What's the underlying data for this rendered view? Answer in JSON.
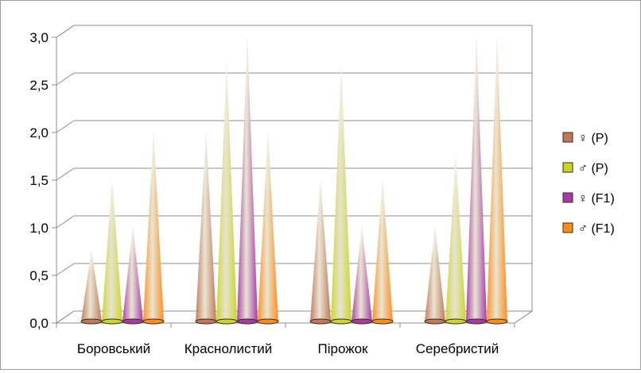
{
  "chart_data": {
    "type": "bar",
    "bar_shape": "cone",
    "categories": [
      "Боровський",
      "Краснолистий",
      "Пірожок",
      "Серебристий"
    ],
    "series": [
      {
        "name": "♀ (P)",
        "color": "#c0785a",
        "values": [
          0.75,
          2.0,
          1.5,
          1.0
        ]
      },
      {
        "name": "♂ (P)",
        "color": "#c8d628",
        "values": [
          1.5,
          2.75,
          2.7,
          1.75
        ]
      },
      {
        "name": "♀ (F1)",
        "color": "#a83aa8",
        "values": [
          1.0,
          3.0,
          1.0,
          3.0
        ]
      },
      {
        "name": "♂ (F1)",
        "color": "#ff8c1a",
        "values": [
          2.0,
          2.0,
          1.5,
          3.0
        ]
      }
    ],
    "yticks": [
      "0,0",
      "0,5",
      "1,0",
      "1,5",
      "2,0",
      "2,5",
      "3,0"
    ],
    "ylim": [
      0,
      3.0
    ],
    "grid": true,
    "legend_position": "right"
  }
}
